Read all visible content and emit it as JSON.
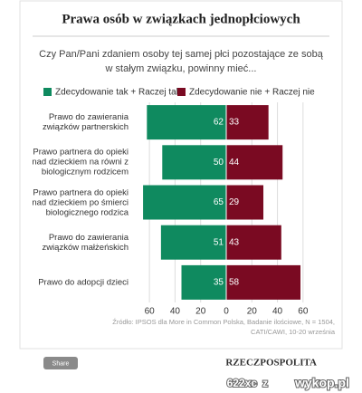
{
  "chart_data": {
    "type": "diverging_bar",
    "title": "Prawa osób w związkach jednopłciowych",
    "subtitle": "Czy Pan/Pani zdaniem osoby tej samej płci pozostające ze sobą w stałym związku, powinny mieć...",
    "categories": [
      "Prawo do zawierania związków partnerskich",
      "Prawo partnera do opieki nad dzieckiem na równi z biologicznym rodzicem",
      "Prawo partnera do opieki nad dzieckiem po śmierci biologicznego rodzica",
      "Prawo do zawierania związków małżeńskich",
      "Prawo do adopcji dzieci"
    ],
    "series": [
      {
        "name": "Zdecydowanie tak + Raczej tak",
        "color": "#0f8a5f",
        "side": "left",
        "values": [
          62,
          50,
          65,
          51,
          35
        ]
      },
      {
        "name": "Zdecydowanie nie + Raczej nie",
        "color": "#7a0a22",
        "side": "right",
        "values": [
          33,
          44,
          29,
          43,
          58
        ]
      }
    ],
    "xlim": [
      -70,
      70
    ],
    "xticks": [
      {
        "value": -60,
        "label": "60"
      },
      {
        "value": -40,
        "label": "40"
      },
      {
        "value": -20,
        "label": "20"
      },
      0,
      20,
      40,
      60
    ],
    "grid": true,
    "legend": "top",
    "source": "Źródło: IPSOS dla More in Common Polska, Badanie ilościowe, N = 1504, CATI/CAWI, 10-20 września"
  },
  "footer": {
    "share": "Share",
    "logo": "RZECZPOSPOLITA",
    "watermark_user": "622xc",
    "watermark_sep": "z",
    "watermark_site": "wykop.pl"
  }
}
